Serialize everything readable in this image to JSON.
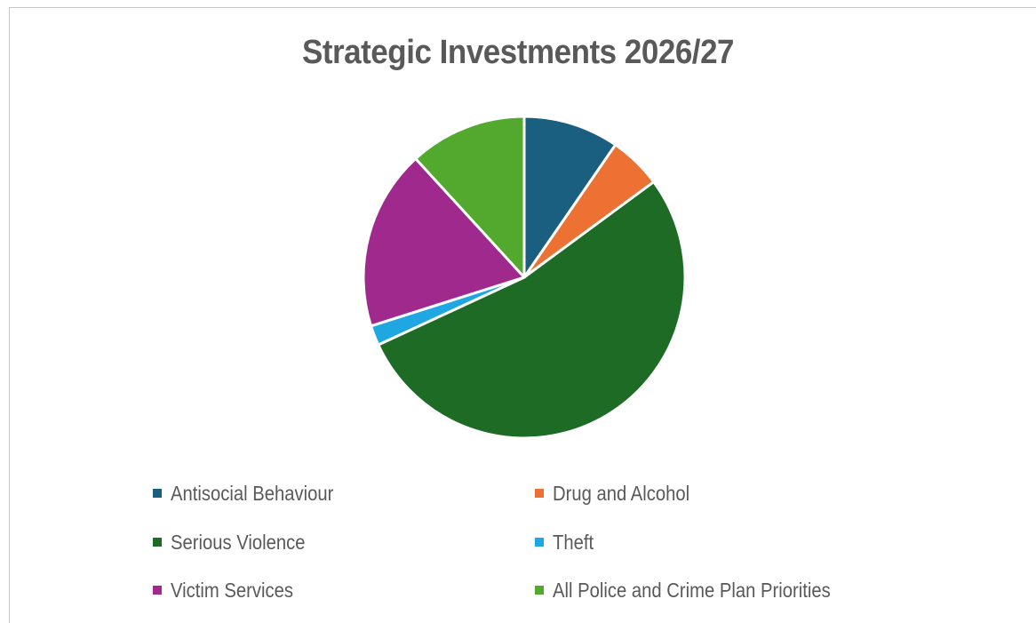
{
  "chart_data": {
    "type": "pie",
    "title": "Strategic Investments 2026/27",
    "legend_position": "bottom",
    "start_angle_deg": 0,
    "series": [
      {
        "name": "Antisocial Behaviour",
        "value": 9.6,
        "color": "#1a5e80"
      },
      {
        "name": "Drug and Alcohol",
        "value": 5.3,
        "color": "#ed7133"
      },
      {
        "name": "Serious Violence",
        "value": 53.2,
        "color": "#1e6b25"
      },
      {
        "name": "Theft",
        "value": 2.0,
        "color": "#1ea7e1"
      },
      {
        "name": "Victim Services",
        "value": 18.1,
        "color": "#a0298e"
      },
      {
        "name": "All Police and Crime Plan Priorities",
        "value": 11.8,
        "color": "#52a92e"
      }
    ]
  }
}
